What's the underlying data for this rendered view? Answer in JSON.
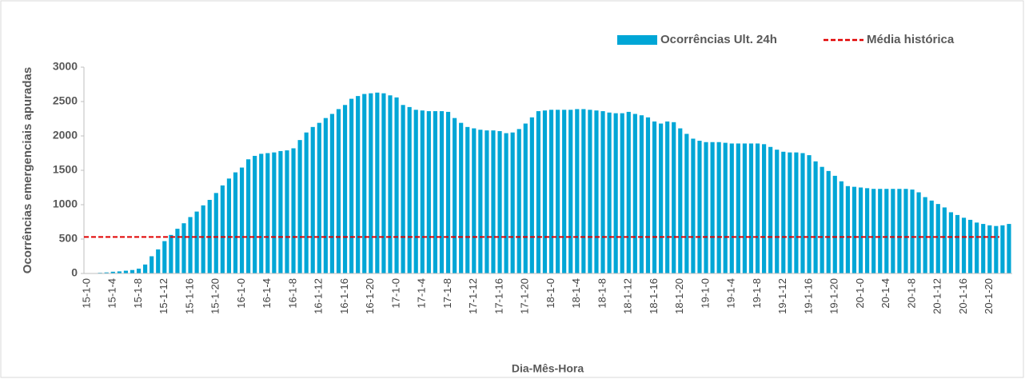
{
  "chart_data": {
    "type": "bar",
    "xlabel": "Dia-Mês-Hora",
    "ylabel": "Ocorrências emergenciais apuradas",
    "categories": [
      "15-1-0",
      null,
      null,
      null,
      "15-1-4",
      null,
      null,
      null,
      "15-1-8",
      null,
      null,
      null,
      "15-1-12",
      null,
      null,
      null,
      "15-1-16",
      null,
      null,
      null,
      "15-1-20",
      null,
      null,
      null,
      "16-1-0",
      null,
      null,
      null,
      "16-1-4",
      null,
      null,
      null,
      "16-1-8",
      null,
      null,
      null,
      "16-1-12",
      null,
      null,
      null,
      "16-1-16",
      null,
      null,
      null,
      "16-1-20",
      null,
      null,
      null,
      "17-1-0",
      null,
      null,
      null,
      "17-1-4",
      null,
      null,
      null,
      "17-1-8",
      null,
      null,
      null,
      "17-1-12",
      null,
      null,
      null,
      "17-1-16",
      null,
      null,
      null,
      "17-1-20",
      null,
      null,
      null,
      "18-1-0",
      null,
      null,
      null,
      "18-1-4",
      null,
      null,
      null,
      "18-1-8",
      null,
      null,
      null,
      "18-1-12",
      null,
      null,
      null,
      "18-1-16",
      null,
      null,
      null,
      "18-1-20",
      null,
      null,
      null,
      "19-1-0",
      null,
      null,
      null,
      "19-1-4",
      null,
      null,
      null,
      "19-1-8",
      null,
      null,
      null,
      "19-1-12",
      null,
      null,
      null,
      "19-1-16",
      null,
      null,
      null,
      "19-1-20",
      null,
      null,
      null,
      "20-1-0",
      null,
      null,
      null,
      "20-1-4",
      null,
      null,
      null,
      "20-1-8",
      null,
      null,
      null,
      "20-1-12",
      null,
      null,
      null,
      "20-1-16",
      null,
      null,
      null,
      "20-1-20",
      null,
      null,
      null
    ],
    "series": [
      {
        "name": "Ocorrências Ult. 24h",
        "color": "#00a6d6",
        "values": [
          0,
          5,
          10,
          15,
          25,
          30,
          40,
          50,
          70,
          130,
          250,
          350,
          470,
          560,
          650,
          730,
          820,
          900,
          990,
          1070,
          1170,
          1280,
          1380,
          1470,
          1540,
          1660,
          1710,
          1740,
          1750,
          1760,
          1780,
          1790,
          1820,
          1940,
          2050,
          2130,
          2190,
          2260,
          2320,
          2390,
          2450,
          2540,
          2580,
          2610,
          2620,
          2630,
          2620,
          2590,
          2560,
          2450,
          2420,
          2380,
          2370,
          2360,
          2360,
          2360,
          2350,
          2260,
          2190,
          2130,
          2110,
          2090,
          2080,
          2080,
          2070,
          2040,
          2050,
          2100,
          2180,
          2270,
          2360,
          2370,
          2380,
          2380,
          2380,
          2380,
          2390,
          2390,
          2380,
          2370,
          2360,
          2340,
          2330,
          2330,
          2350,
          2320,
          2300,
          2270,
          2210,
          2180,
          2210,
          2200,
          2110,
          2030,
          1960,
          1930,
          1910,
          1910,
          1910,
          1900,
          1890,
          1890,
          1890,
          1890,
          1890,
          1880,
          1840,
          1800,
          1770,
          1760,
          1760,
          1750,
          1720,
          1630,
          1550,
          1490,
          1420,
          1340,
          1270,
          1260,
          1250,
          1240,
          1230,
          1230,
          1230,
          1230,
          1230,
          1230,
          1220,
          1180,
          1110,
          1060,
          1010,
          960,
          890,
          850,
          810,
          780,
          740,
          720,
          700,
          690,
          700,
          720
        ]
      }
    ],
    "reference_line": {
      "name": "Média histórica",
      "color": "#e00000",
      "value": 530
    },
    "ylim": [
      0,
      3000
    ],
    "yticks": [
      0,
      500,
      1000,
      1500,
      2000,
      2500,
      3000
    ],
    "grid": false,
    "legend": "top-right"
  }
}
